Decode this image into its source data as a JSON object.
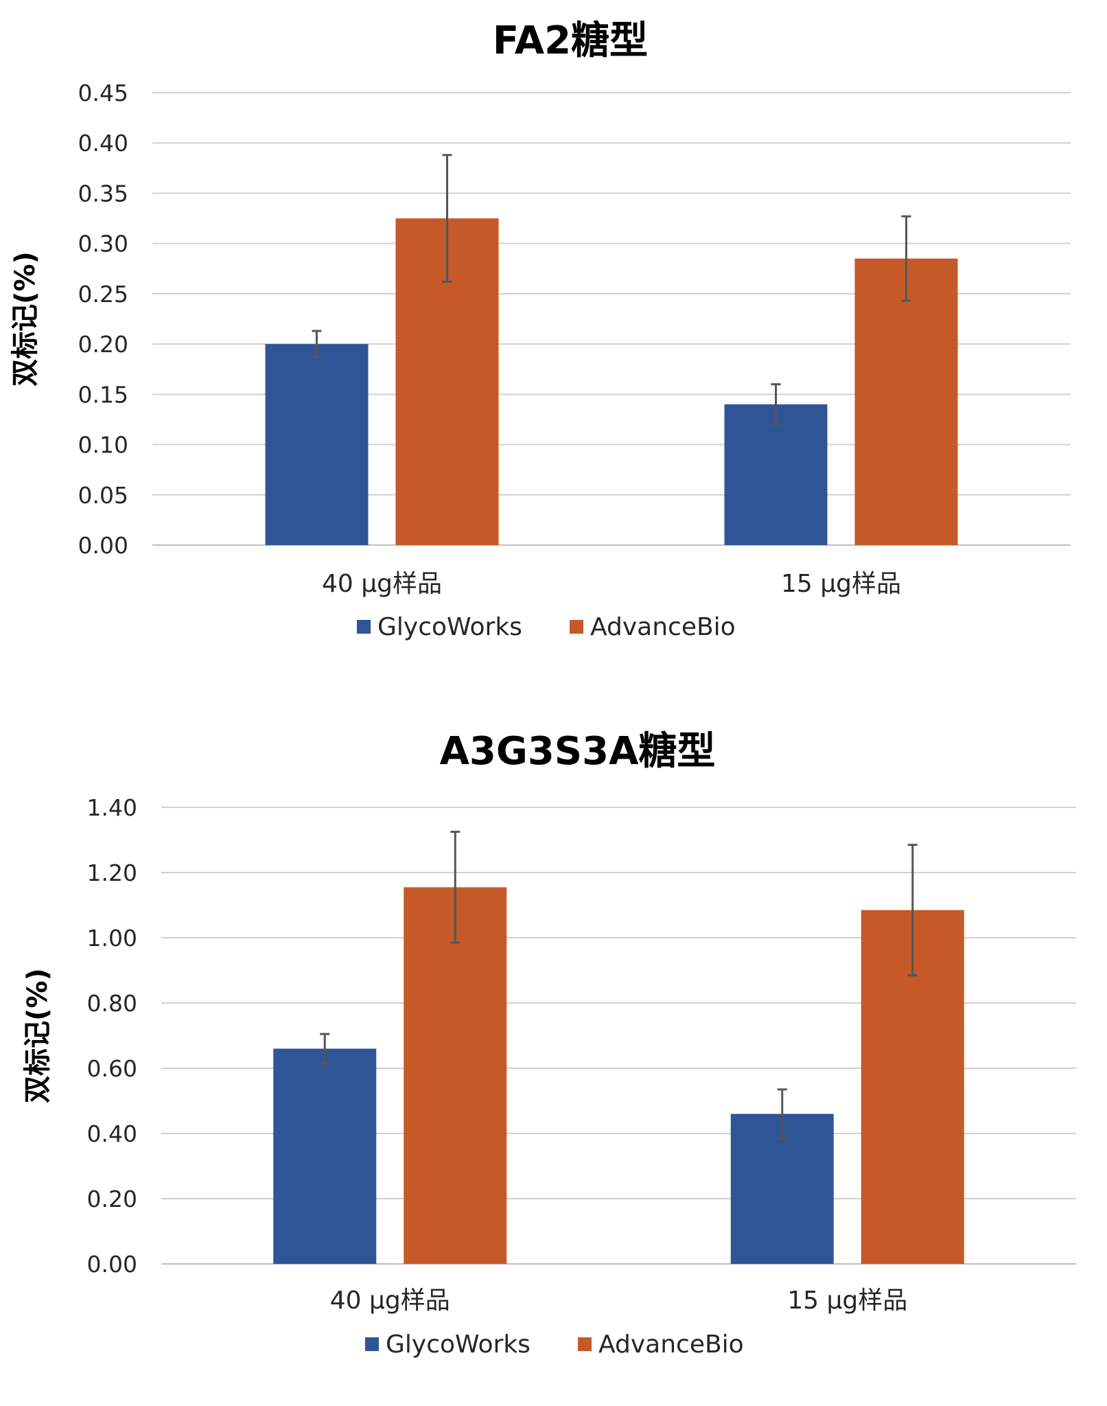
{
  "chart_data": [
    {
      "type": "bar",
      "title": "FA2糖型",
      "ylabel": "双标记(%)",
      "xlabel": "",
      "categories": [
        "40 µg样品",
        "15 µg样品"
      ],
      "ylim": [
        0,
        0.45
      ],
      "yticks": [
        "0.00",
        "0.05",
        "0.10",
        "0.15",
        "0.20",
        "0.25",
        "0.30",
        "0.35",
        "0.40",
        "0.45"
      ],
      "series": [
        {
          "name": "GlycoWorks",
          "color": "#2f5597",
          "values": [
            0.2,
            0.14
          ],
          "errors": [
            0.013,
            0.02
          ]
        },
        {
          "name": "AdvanceBio",
          "color": "#c55a28",
          "values": [
            0.325,
            0.285
          ],
          "errors": [
            0.063,
            0.042
          ]
        }
      ],
      "legend": "bottom"
    },
    {
      "type": "bar",
      "title": "A3G3S3A糖型",
      "ylabel": "双标记(%)",
      "xlabel": "",
      "categories": [
        "40 µg样品",
        "15 µg样品"
      ],
      "ylim": [
        0,
        1.4
      ],
      "yticks": [
        "0.00",
        "0.20",
        "0.40",
        "0.60",
        "0.80",
        "1.00",
        "1.20",
        "1.40"
      ],
      "series": [
        {
          "name": "GlycoWorks",
          "color": "#2f5597",
          "values": [
            0.66,
            0.46
          ],
          "errors": [
            0.045,
            0.075
          ]
        },
        {
          "name": "AdvanceBio",
          "color": "#c55a28",
          "values": [
            1.155,
            1.085
          ],
          "errors": [
            0.17,
            0.2
          ]
        }
      ],
      "legend": "bottom"
    }
  ]
}
